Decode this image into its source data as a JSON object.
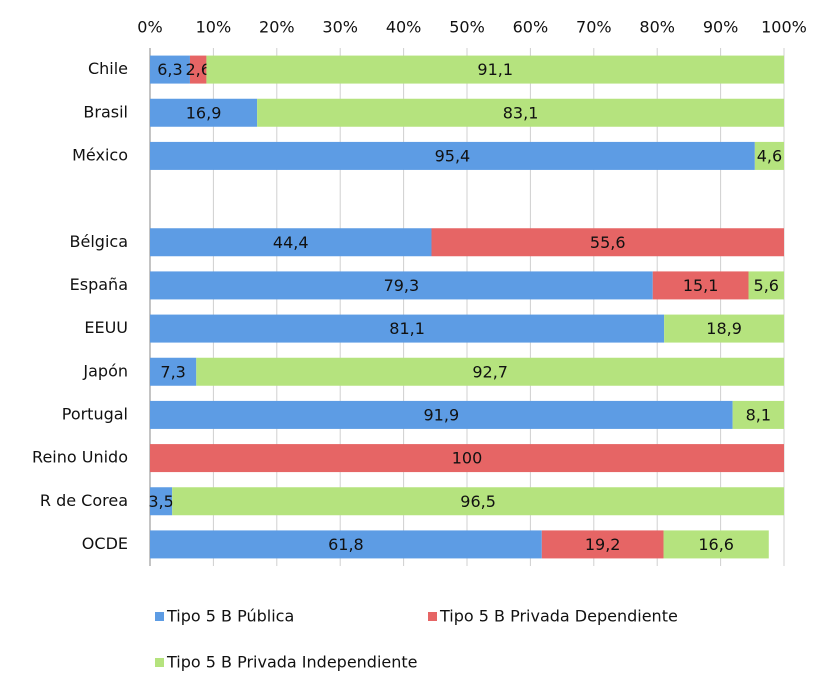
{
  "chart_data": {
    "type": "stacked-bar",
    "orientation": "horizontal",
    "categories": [
      "Chile",
      "Brasil",
      "México",
      null,
      "Bélgica",
      "España",
      "EEUU",
      "Japón",
      "Portugal",
      "Reino Unido",
      "R de Corea",
      "OCDE"
    ],
    "series": [
      {
        "name": "Tipo 5 B Pública",
        "color": "#5d9ce4",
        "values": [
          6.3,
          16.9,
          95.4,
          null,
          44.4,
          79.3,
          81.1,
          7.3,
          91.9,
          0,
          3.5,
          61.8
        ],
        "value_labels": [
          "6,3",
          "16,9",
          "95,4",
          null,
          "44,4",
          "79,3",
          "81,1",
          "7,3",
          "91,9",
          null,
          "3,5",
          "61,8"
        ]
      },
      {
        "name": "Tipo 5 B Privada Dependiente",
        "color": "#e66565",
        "values": [
          2.6,
          0,
          0,
          null,
          55.6,
          15.1,
          0,
          0,
          0,
          100,
          0,
          19.2
        ],
        "value_labels": [
          "2,6",
          null,
          null,
          null,
          "55,6",
          "15,1",
          null,
          null,
          null,
          "100",
          null,
          "19,2"
        ]
      },
      {
        "name": "Tipo 5 B Privada Independiente",
        "color": "#b5e37e",
        "values": [
          91.1,
          83.1,
          4.6,
          null,
          0,
          5.6,
          18.9,
          92.7,
          8.1,
          0,
          96.5,
          16.6
        ],
        "value_labels": [
          "91,1",
          "83,1",
          "4,6",
          null,
          null,
          "5,6",
          "18,9",
          "92,7",
          "8,1",
          null,
          "96,5",
          "16,6"
        ]
      }
    ],
    "xlim": [
      0,
      100
    ],
    "xticks": [
      {
        "value": 0,
        "label": "0%"
      },
      {
        "value": 10,
        "label": "10%"
      },
      {
        "value": 20,
        "label": "20%"
      },
      {
        "value": 30,
        "label": "30%"
      },
      {
        "value": 40,
        "label": "40%"
      },
      {
        "value": 50,
        "label": "50%"
      },
      {
        "value": 60,
        "label": "60%"
      },
      {
        "value": 70,
        "label": "70%"
      },
      {
        "value": 80,
        "label": "80%"
      },
      {
        "value": 90,
        "label": "90%"
      },
      {
        "value": 100,
        "label": "100%"
      }
    ],
    "grid": true,
    "legend": "bottom"
  }
}
